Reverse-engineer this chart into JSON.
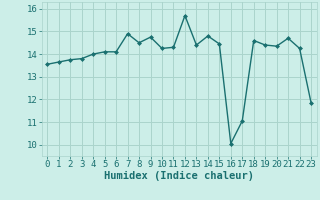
{
  "x": [
    0,
    1,
    2,
    3,
    4,
    5,
    6,
    7,
    8,
    9,
    10,
    11,
    12,
    13,
    14,
    15,
    16,
    17,
    18,
    19,
    20,
    21,
    22,
    23
  ],
  "y": [
    13.55,
    13.65,
    13.75,
    13.8,
    14.0,
    14.1,
    14.1,
    14.9,
    14.5,
    14.75,
    14.25,
    14.3,
    15.7,
    14.4,
    14.8,
    14.45,
    10.05,
    11.05,
    14.6,
    14.4,
    14.35,
    14.7,
    14.25,
    11.85
  ],
  "line_color": "#1a7070",
  "marker": "D",
  "marker_size": 2,
  "linewidth": 1.0,
  "xlabel": "Humidex (Indice chaleur)",
  "xlabel_fontsize": 7.5,
  "xlabel_fontweight": "bold",
  "bg_color": "#cceee8",
  "grid_color": "#aad4cc",
  "tick_color": "#1a7070",
  "ylim": [
    9.5,
    16.3
  ],
  "xlim": [
    -0.5,
    23.5
  ],
  "yticks": [
    10,
    11,
    12,
    13,
    14,
    15,
    16
  ],
  "xticks": [
    0,
    1,
    2,
    3,
    4,
    5,
    6,
    7,
    8,
    9,
    10,
    11,
    12,
    13,
    14,
    15,
    16,
    17,
    18,
    19,
    20,
    21,
    22,
    23
  ],
  "tick_fontsize": 6.5,
  "font_family": "monospace"
}
